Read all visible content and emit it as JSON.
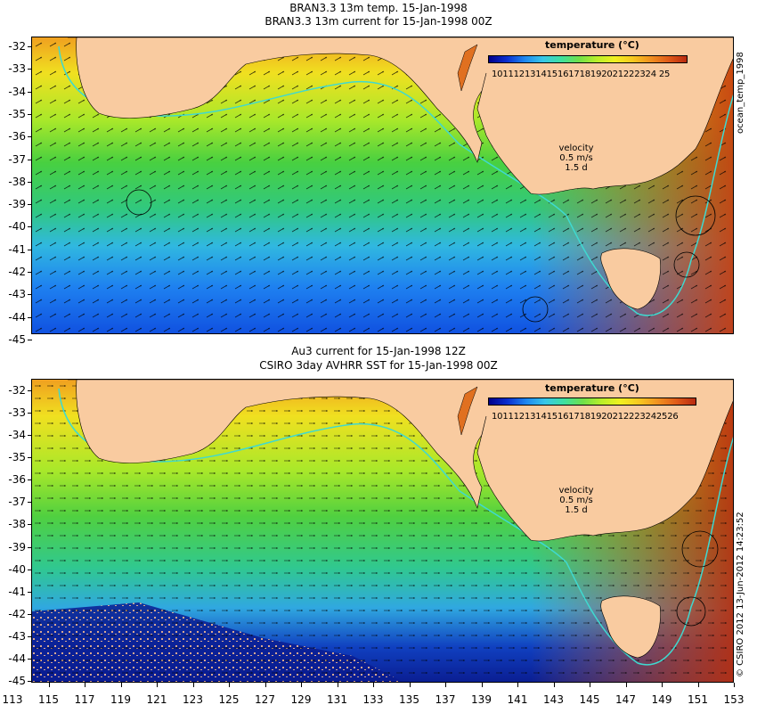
{
  "top_panel": {
    "title_line1": "BRAN3.3 13m temp. 15-Jan-1998",
    "title_line2": "BRAN3.3 13m current for 15-Jan-1998 00Z",
    "legend_title": "temperature (°C)",
    "legend_ticks": "101112131415161718192021222324 25",
    "velocity_label": "velocity",
    "velocity_value": "0.5 m/s",
    "velocity_sub": "1.5 d",
    "side_label": "ocean_temp_1998"
  },
  "bottom_panel": {
    "title_line1": "Au3 current for 15-Jan-1998 12Z",
    "title_line2": "CSIRO 3day AVHRR SST for 15-Jan-1998 00Z",
    "legend_title": "temperature (°C)",
    "legend_ticks": "1011121314151617181920212223242526",
    "velocity_label": "velocity",
    "velocity_value": "0.5 m/s",
    "velocity_sub": "1.5 d",
    "side_label": "© CSIRO 2012  13-Jun-2012 14:23:52"
  },
  "axes": {
    "latitudes": [
      "-32",
      "-33",
      "-34",
      "-35",
      "-36",
      "-37",
      "-38",
      "-39",
      "-40",
      "-41",
      "-42",
      "-43",
      "-44",
      "-45"
    ],
    "longitudes": [
      "113",
      "115",
      "117",
      "119",
      "121",
      "123",
      "125",
      "127",
      "129",
      "131",
      "133",
      "135",
      "137",
      "139",
      "141",
      "143",
      "145",
      "147",
      "149",
      "151",
      "153"
    ]
  },
  "colors": {
    "land": "#f9cba0",
    "warm": "#e0701a",
    "cold": "#0a2fd0",
    "current_contour": "#3fd9d0"
  }
}
